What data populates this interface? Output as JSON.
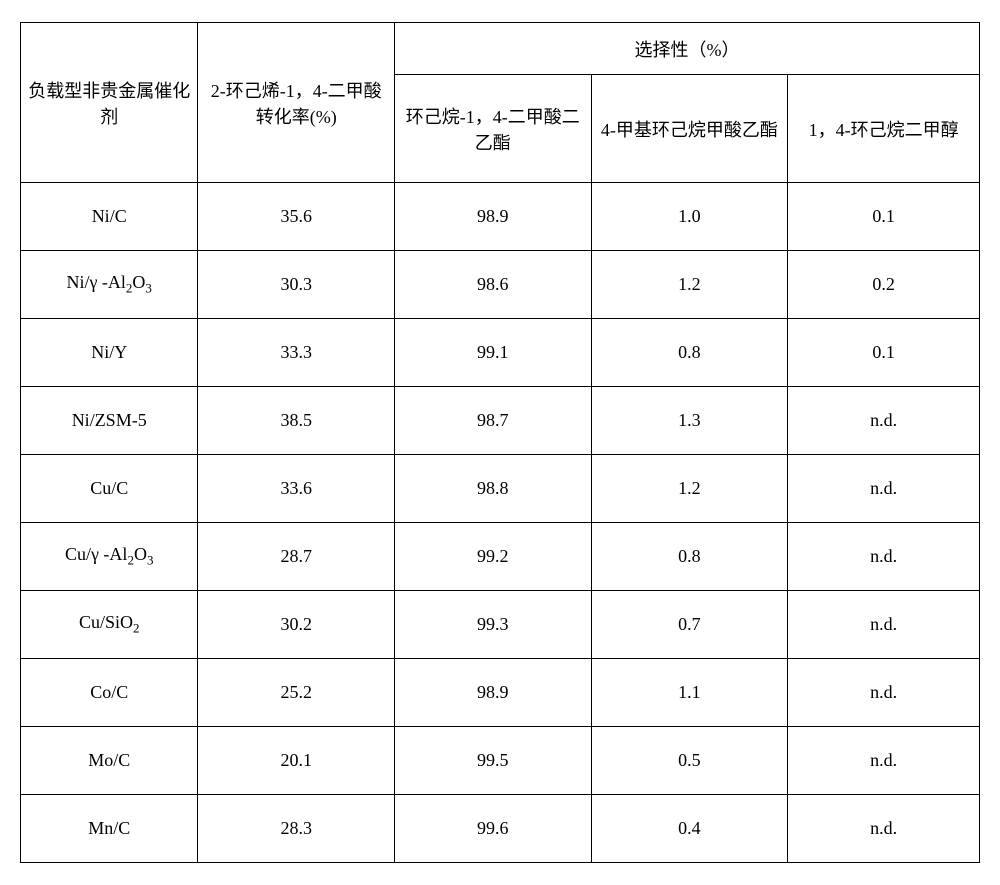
{
  "table": {
    "structure_type": "table",
    "border_color": "#000000",
    "background_color": "#ffffff",
    "text_color": "#000000",
    "font_family": "SimSun",
    "base_fontsize": 18,
    "columns": [
      "catalyst",
      "conversion",
      "selectivity1",
      "selectivity2",
      "selectivity3"
    ],
    "col_widths_pct": [
      18.5,
      20.5,
      20.5,
      20.5,
      20.0
    ],
    "headers": {
      "catalyst": "负载型非贵金属催化剂",
      "conversion": "2-环己烯-1，4-二甲酸转化率(%)",
      "selectivity_group": "选择性（%）",
      "selectivity1": "环己烷-1，4-二甲酸二乙酯",
      "selectivity2": "4-甲基环己烷甲酸乙酯",
      "selectivity3": "1，4-环己烷二甲醇"
    },
    "rows": [
      {
        "catalyst_html": "Ni/C",
        "conversion": "35.6",
        "sel1": "98.9",
        "sel2": "1.0",
        "sel3": "0.1"
      },
      {
        "catalyst_html": "Ni/γ -Al<sub>2</sub>O<sub>3</sub>",
        "conversion": "30.3",
        "sel1": "98.6",
        "sel2": "1.2",
        "sel3": "0.2"
      },
      {
        "catalyst_html": "Ni/Y",
        "conversion": "33.3",
        "sel1": "99.1",
        "sel2": "0.8",
        "sel3": "0.1"
      },
      {
        "catalyst_html": "Ni/ZSM-5",
        "conversion": "38.5",
        "sel1": "98.7",
        "sel2": "1.3",
        "sel3": "n.d."
      },
      {
        "catalyst_html": "Cu/C",
        "conversion": "33.6",
        "sel1": "98.8",
        "sel2": "1.2",
        "sel3": "n.d."
      },
      {
        "catalyst_html": "Cu/γ -Al<sub>2</sub>O<sub>3</sub>",
        "conversion": "28.7",
        "sel1": "99.2",
        "sel2": "0.8",
        "sel3": "n.d."
      },
      {
        "catalyst_html": "Cu/SiO<sub>2</sub>",
        "conversion": "30.2",
        "sel1": "99.3",
        "sel2": "0.7",
        "sel3": "n.d."
      },
      {
        "catalyst_html": "Co/C",
        "conversion": "25.2",
        "sel1": "98.9",
        "sel2": "1.1",
        "sel3": "n.d."
      },
      {
        "catalyst_html": "Mo/C",
        "conversion": "20.1",
        "sel1": "99.5",
        "sel2": "0.5",
        "sel3": "n.d."
      },
      {
        "catalyst_html": "Mn/C",
        "conversion": "28.3",
        "sel1": "99.6",
        "sel2": "0.4",
        "sel3": "n.d."
      }
    ]
  }
}
